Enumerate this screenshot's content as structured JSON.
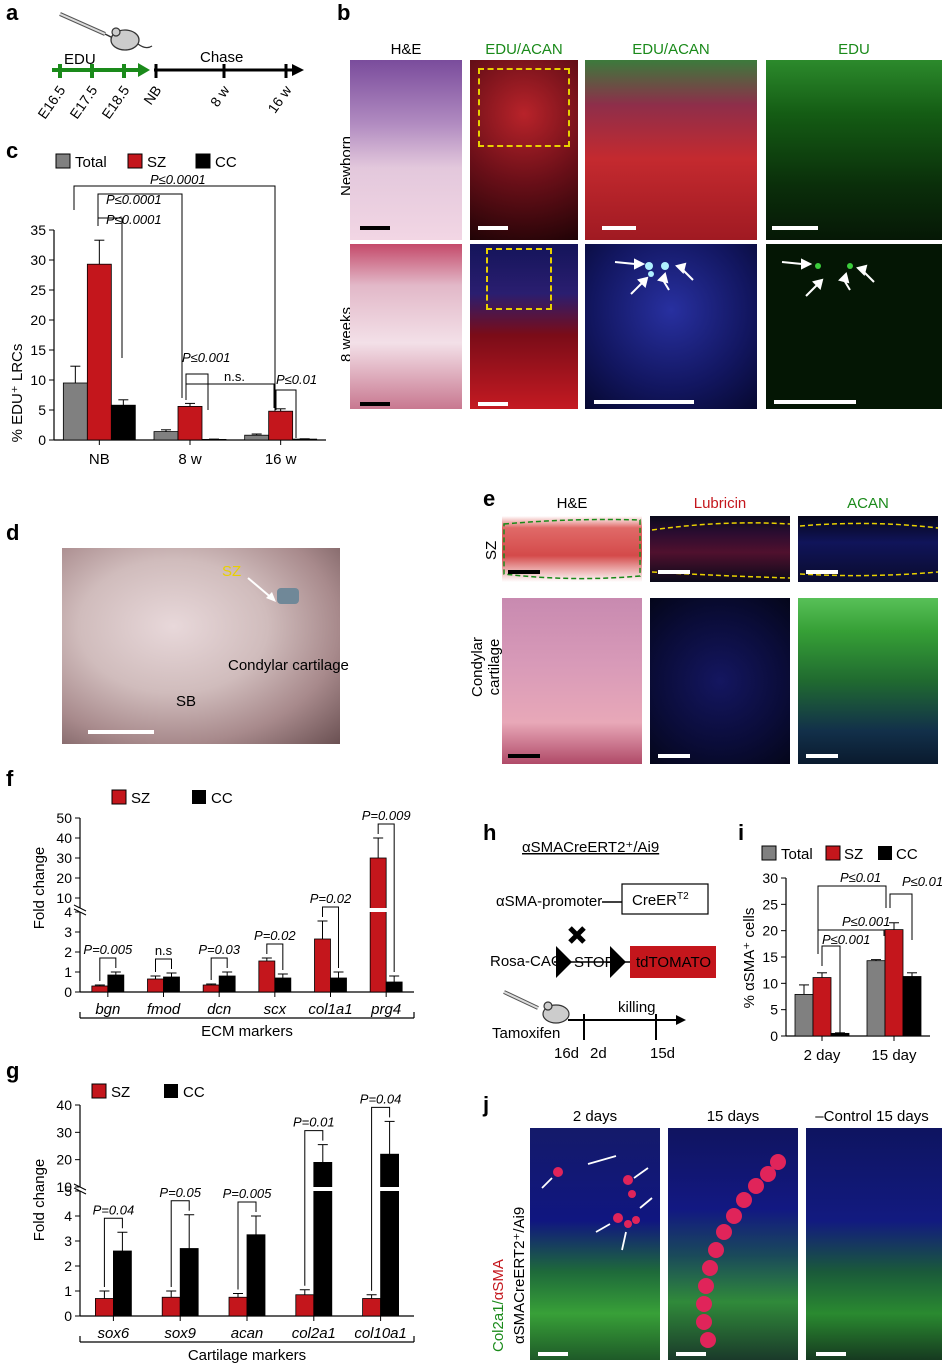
{
  "panels": {
    "a": {
      "letter": "a",
      "edu_label": "EDU",
      "chase_label": "Chase",
      "edu_ticks": [
        "E16.5",
        "E17.5",
        "E18.5"
      ],
      "chase_ticks": [
        "NB",
        "8 w",
        "16 w"
      ]
    },
    "b": {
      "letter": "b",
      "column_headers": [
        "H&E",
        "EDU/ACAN",
        "EDU/ACAN",
        "EDU"
      ],
      "row_labels": [
        "Newborn",
        "8 weeks"
      ]
    },
    "c": {
      "letter": "c",
      "legend": [
        "Total",
        "SZ",
        "CC"
      ],
      "ylabel": "% EDU⁺ LRCs",
      "pvals": [
        "P≤0.0001",
        "P≤0.0001",
        "P≤0.0001",
        "P≤0.001",
        "n.s.",
        "P≤0.01"
      ]
    },
    "d": {
      "letter": "d",
      "labels": [
        "SZ",
        "Condylar cartilage",
        "SB"
      ]
    },
    "e": {
      "letter": "e",
      "column_headers": [
        "H&E",
        "Lubricin",
        "ACAN"
      ],
      "row_labels": [
        "SZ",
        "Condylar cartilage"
      ]
    },
    "f": {
      "letter": "f",
      "legend": [
        "SZ",
        "CC"
      ],
      "ylabel": "Fold change",
      "xlabel": "ECM markers",
      "pvals": [
        "P=0.005",
        "n.s",
        "P=0.03",
        "P=0.02",
        "P=0.02",
        "P=0.009"
      ]
    },
    "g": {
      "letter": "g",
      "legend": [
        "SZ",
        "CC"
      ],
      "ylabel": "Fold change",
      "xlabel": "Cartilage markers",
      "pvals": [
        "P=0.04",
        "P=0.05",
        "P=0.005",
        "P=0.01",
        "P=0.04"
      ]
    },
    "h": {
      "letter": "h",
      "title": "αSMACreERT2⁺/Ai9",
      "promoter": "αSMA-promoter",
      "creer": "CreER",
      "creer_sup": "T2",
      "rosa": "Rosa-CAG",
      "stop": "STOP",
      "tdtomato": "tdTOMATO",
      "tamoxifen": "Tamoxifen",
      "killing": "killing",
      "ticks": [
        "16d",
        "2d",
        "15d"
      ]
    },
    "i": {
      "letter": "i",
      "legend": [
        "Total",
        "SZ",
        "CC"
      ],
      "ylabel": "% αSMA⁺ cells",
      "pvals": [
        "P≤0.01",
        "P≤0.01",
        "P≤0.001",
        "P≤0.001"
      ]
    },
    "j": {
      "letter": "j",
      "column_headers": [
        "2 days",
        "15 days",
        "–Control 15 days"
      ],
      "side_label_green": "Col2a1/",
      "side_label_red": "αSMA",
      "side_label2": "αSMACreERT2⁺/Ai9"
    }
  },
  "colors": {
    "sz": "#c4161c",
    "cc": "#000000",
    "total": "#808080",
    "green": "#1a8a1a",
    "red": "#c4161c",
    "yellow": "#e8d000"
  },
  "chart_data": [
    {
      "panel": "c",
      "type": "bar",
      "categories": [
        "NB",
        "8 w",
        "16 w"
      ],
      "series": [
        {
          "name": "Total",
          "values": [
            9.5,
            1.4,
            0.8
          ],
          "errors": [
            2.8,
            0.3,
            0.2
          ]
        },
        {
          "name": "SZ",
          "values": [
            29.3,
            5.6,
            4.8
          ],
          "errors": [
            4.0,
            0.5,
            0.4
          ]
        },
        {
          "name": "CC",
          "values": [
            5.8,
            0.1,
            0.15
          ],
          "errors": [
            0.9,
            0.05,
            0.05
          ]
        }
      ],
      "yticks": [
        "0",
        "5",
        "10",
        "15",
        "20",
        "25",
        "30",
        "35"
      ],
      "ylim": [
        0,
        35
      ]
    },
    {
      "panel": "f",
      "type": "bar",
      "categories": [
        "bgn",
        "fmod",
        "dcn",
        "scx",
        "col1a1",
        "prg4"
      ],
      "series": [
        {
          "name": "SZ",
          "values": [
            0.3,
            0.65,
            0.35,
            1.55,
            2.65,
            30
          ],
          "errors": [
            0.05,
            0.15,
            0.05,
            0.15,
            0.9,
            10
          ]
        },
        {
          "name": "CC",
          "values": [
            0.85,
            0.75,
            0.8,
            0.7,
            0.7,
            0.5
          ],
          "errors": [
            0.15,
            0.2,
            0.2,
            0.2,
            0.3,
            0.3
          ]
        }
      ],
      "yticks": [
        "0",
        "1",
        "2",
        "3",
        "4",
        "10",
        "20",
        "30",
        "40",
        "50"
      ],
      "axis_break": [
        4,
        5
      ]
    },
    {
      "panel": "g",
      "type": "bar",
      "categories": [
        "sox6",
        "sox9",
        "acan",
        "col2a1",
        "col10a1"
      ],
      "series": [
        {
          "name": "SZ",
          "values": [
            0.7,
            0.75,
            0.75,
            0.85,
            0.7
          ],
          "errors": [
            0.3,
            0.25,
            0.15,
            0.2,
            0.15
          ]
        },
        {
          "name": "CC",
          "values": [
            2.6,
            2.7,
            3.25,
            19,
            22
          ],
          "errors": [
            0.75,
            1.35,
            0.75,
            6.5,
            12
          ]
        }
      ],
      "yticks": [
        "0",
        "1",
        "2",
        "3",
        "4",
        "5",
        "10",
        "20",
        "30",
        "40"
      ],
      "axis_break": [
        5,
        10
      ]
    },
    {
      "panel": "i",
      "type": "bar",
      "categories": [
        "2 day",
        "15 day"
      ],
      "series": [
        {
          "name": "Total",
          "values": [
            7.9,
            14.3
          ],
          "errors": [
            1.8,
            0.2
          ]
        },
        {
          "name": "SZ",
          "values": [
            11.1,
            20.2
          ],
          "errors": [
            0.9,
            1.3
          ]
        },
        {
          "name": "CC",
          "values": [
            0.5,
            11.3
          ],
          "errors": [
            0.1,
            0.7
          ]
        }
      ],
      "yticks": [
        "0",
        "5",
        "10",
        "15",
        "20",
        "25",
        "30"
      ],
      "ylim": [
        0,
        30
      ]
    }
  ]
}
